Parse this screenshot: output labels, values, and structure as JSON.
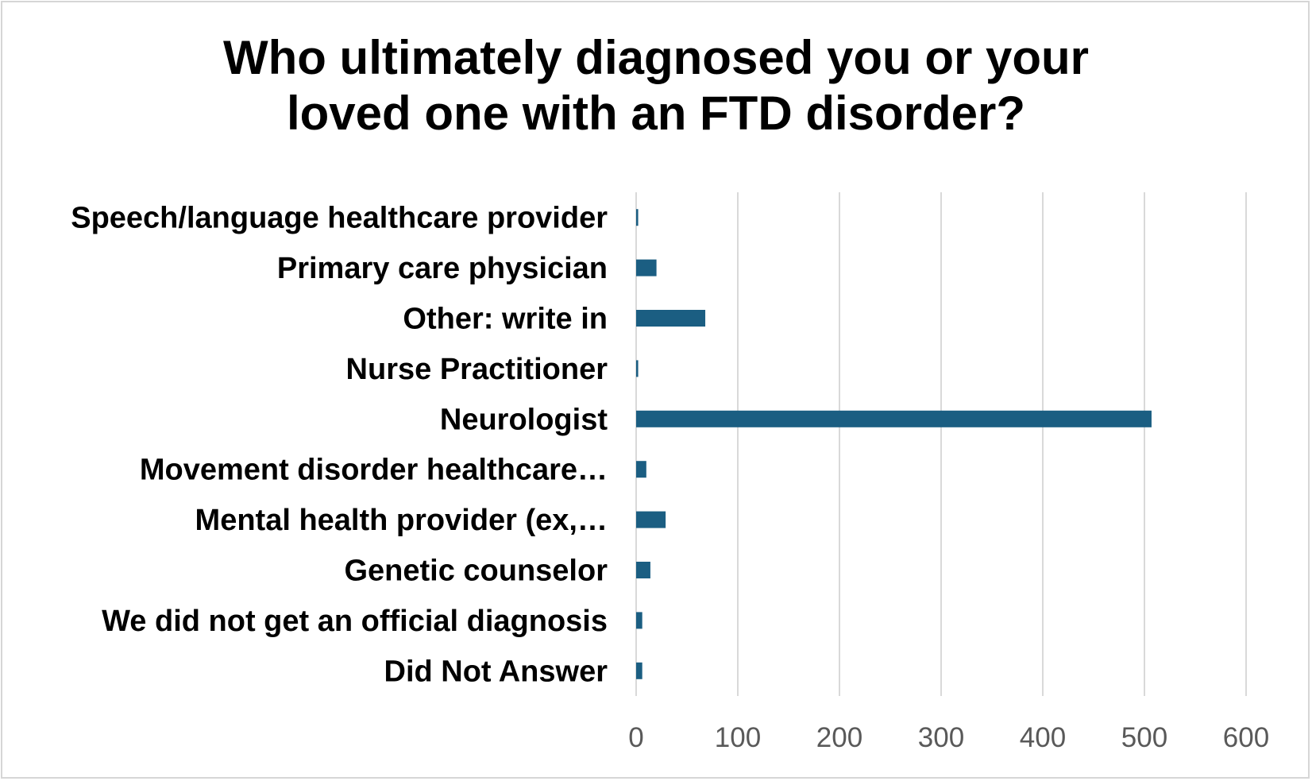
{
  "chart_data": {
    "type": "bar",
    "orientation": "horizontal",
    "title_lines": [
      "Who ultimately diagnosed you or your",
      "loved one with an FTD disorder?"
    ],
    "categories": [
      "Speech/language healthcare provider",
      "Primary care physician",
      "Other: write in",
      "Nurse Practitioner",
      "Neurologist",
      "Movement disorder healthcare…",
      "Mental health provider (ex,…",
      "Genetic counselor",
      "We did not get an official diagnosis",
      "Did Not Answer"
    ],
    "values": [
      2,
      20,
      68,
      2,
      507,
      10,
      29,
      14,
      6,
      6
    ],
    "xlim": [
      0,
      600
    ],
    "xticks": [
      "0",
      "100",
      "200",
      "300",
      "400",
      "500",
      "600"
    ],
    "xlabel": "",
    "ylabel": "",
    "grid": "vertical",
    "legend": "none",
    "bar_color": "#1b5e82",
    "grid_color": "#d9d9d9"
  }
}
